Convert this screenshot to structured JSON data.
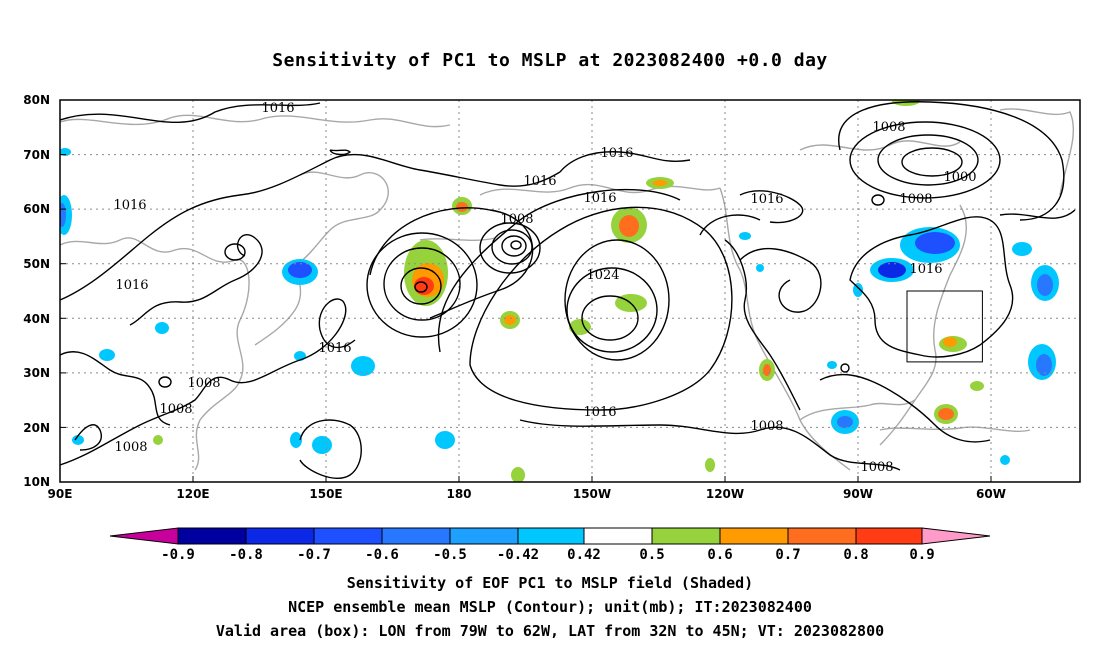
{
  "title": "Sensitivity of PC1 to MSLP at 2023082400 +0.0 day",
  "lat_ticks": [
    "80N",
    "70N",
    "60N",
    "50N",
    "40N",
    "30N",
    "20N",
    "10N"
  ],
  "lon_ticks": [
    "90E",
    "120E",
    "150E",
    "180",
    "150W",
    "120W",
    "90W",
    "60W"
  ],
  "contour_labels": [
    "1016",
    "1016",
    "1016",
    "1008",
    "1016",
    "1016",
    "1016",
    "1008",
    "1000",
    "1008",
    "1016",
    "1016",
    "1024",
    "1016",
    "1008",
    "1008",
    "1008",
    "1016",
    "1008",
    "1008"
  ],
  "colorbar": {
    "labels": [
      "-0.9",
      "-0.8",
      "-0.7",
      "-0.6",
      "-0.5",
      "-0.42",
      "0.42",
      "0.5",
      "0.6",
      "0.7",
      "0.8",
      "0.9"
    ],
    "colors": [
      "#c8009b",
      "#0000a0",
      "#0a28e6",
      "#1e50ff",
      "#2878ff",
      "#1ea0ff",
      "#00c8ff",
      "#ffffff",
      "#96d23c",
      "#ff9b00",
      "#ff6e1e",
      "#ff3c14",
      "#ff0000",
      "#ff9bc8"
    ]
  },
  "valid_box": {
    "lon_min": -79,
    "lon_max": -62,
    "lat_min": 32,
    "lat_max": 45
  },
  "captions": {
    "line1": "Sensitivity of EOF PC1 to MSLP field (Shaded)",
    "line2": "NCEP ensemble mean MSLP (Contour); unit(mb); IT:2023082400",
    "line3": "Valid area (box): LON from 79W to 62W, LAT from 32N to 45N; VT: 2023082800"
  }
}
